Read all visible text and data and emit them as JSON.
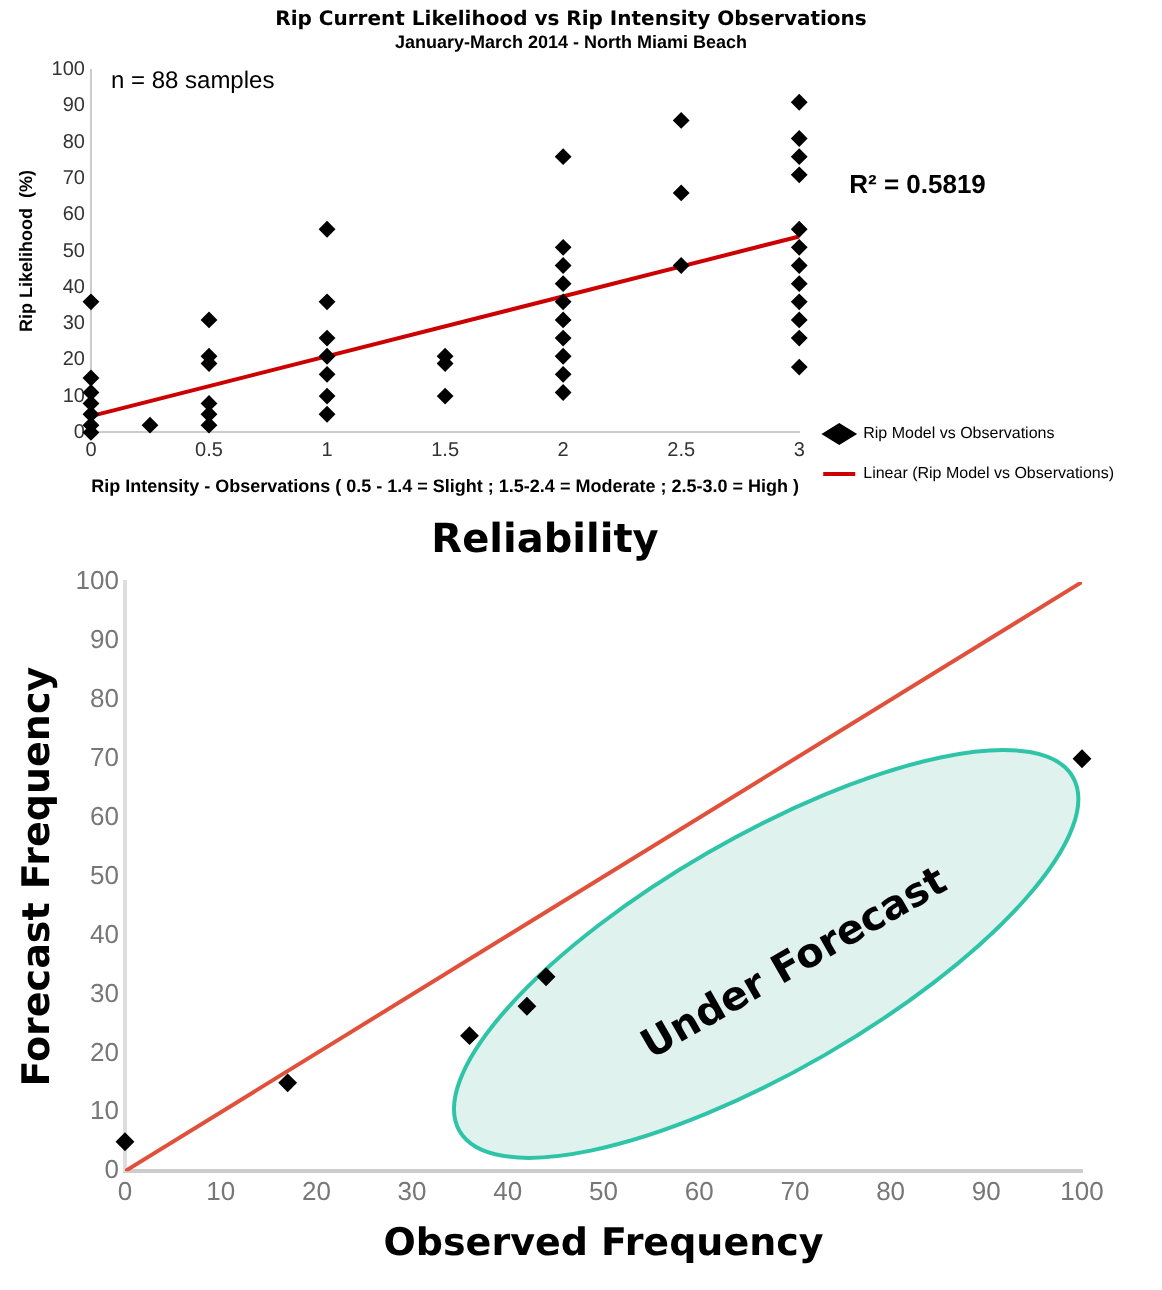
{
  "chart_data": [
    {
      "type": "scatter",
      "title": "Rip Current Likelihood vs Rip Intensity Observations",
      "subtitle": "January-March 2014 - North Miami Beach",
      "xlabel": "Rip Intensity - Observations ( 0.5 - 1.4 = Slight ; 1.5-2.4 = Moderate ; 2.5-3.0 = High )",
      "ylabel": "Rip Likelihood  (%)",
      "annotations": [
        "n = 88 samples",
        "R² = 0.5819"
      ],
      "xlim": [
        0,
        3
      ],
      "xticks": [
        0,
        0.5,
        1,
        1.5,
        2,
        2.5,
        3
      ],
      "ylim": [
        0,
        100
      ],
      "yticks": [
        0,
        10,
        20,
        30,
        40,
        50,
        60,
        70,
        80,
        90,
        100
      ],
      "grid": false,
      "legend": "right",
      "marker": "diamond",
      "series": [
        {
          "name": "Rip Model vs Observations",
          "type": "scatter",
          "color": "#000000",
          "x": [
            0,
            0,
            0,
            0,
            0,
            0,
            0,
            0.25,
            0.5,
            0.5,
            0.5,
            0.5,
            0.5,
            0.5,
            1,
            1,
            1,
            1,
            1,
            1,
            1,
            1.5,
            1.5,
            1.5,
            2,
            2,
            2,
            2,
            2,
            2,
            2,
            2,
            2,
            2,
            2.5,
            2.5,
            2.5,
            3,
            3,
            3,
            3,
            3,
            3,
            3,
            3,
            3,
            3,
            3,
            3
          ],
          "values": [
            36,
            15,
            11,
            8,
            5,
            2,
            0,
            2,
            31,
            21,
            19,
            8,
            5,
            2,
            56,
            36,
            26,
            21,
            16,
            10,
            5,
            21,
            19,
            10,
            76,
            51,
            46,
            41,
            36,
            31,
            26,
            21,
            16,
            11,
            86,
            66,
            46,
            91,
            81,
            76,
            71,
            56,
            51,
            46,
            41,
            36,
            31,
            26,
            18
          ]
        },
        {
          "name": "Linear (Rip Model vs Observations)",
          "type": "line",
          "marker": "none",
          "color": "#cc0000",
          "x": [
            0,
            3
          ],
          "values": [
            4.5,
            54
          ]
        }
      ]
    },
    {
      "type": "scatter",
      "title": "Reliability",
      "xlabel": "Observed Frequency",
      "ylabel": "Forecast Frequency",
      "annotations": [
        "Under Forecast"
      ],
      "xlim": [
        0,
        100
      ],
      "xticks": [
        0,
        10,
        20,
        30,
        40,
        50,
        60,
        70,
        80,
        90,
        100
      ],
      "ylim": [
        0,
        100
      ],
      "yticks": [
        0,
        10,
        20,
        30,
        40,
        50,
        60,
        70,
        80,
        90,
        100
      ],
      "grid": false,
      "marker": "diamond",
      "series": [
        {
          "type": "scatter",
          "color": "#000000",
          "x": [
            0,
            17,
            36,
            42,
            44,
            100
          ],
          "values": [
            5,
            15,
            23,
            28,
            33,
            70
          ]
        },
        {
          "type": "line",
          "marker": "none",
          "color": "#e0503a",
          "x": [
            0,
            100
          ],
          "values": [
            0,
            100
          ]
        }
      ]
    }
  ]
}
